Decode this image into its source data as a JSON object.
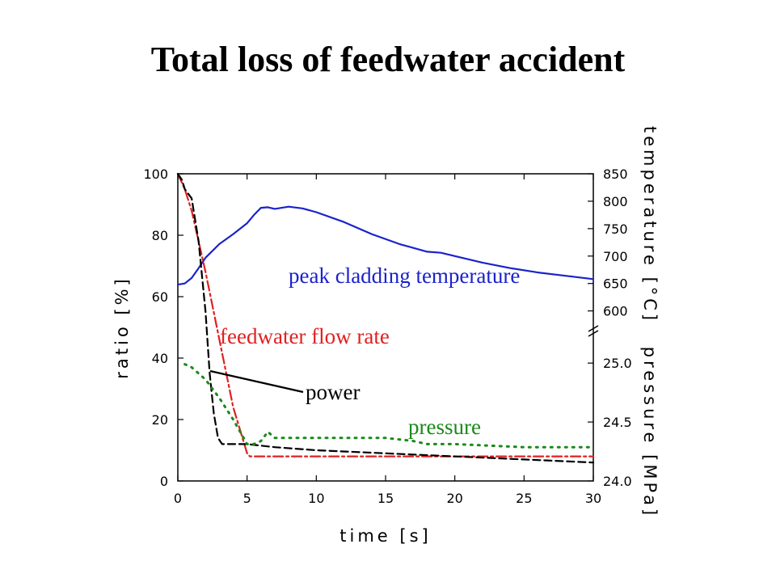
{
  "page": {
    "title": "Total loss of feedwater accident"
  },
  "chart_data": {
    "type": "line",
    "title": "Total loss of feedwater accident",
    "xlabel": "time [s]",
    "ylabel_left": "ratio [%]",
    "ylabel_right_upper": "temperature [°C]",
    "ylabel_right_lower": "pressure [MPa]",
    "xlim": [
      0,
      30
    ],
    "ylim_left": [
      0,
      100
    ],
    "ylim_right_upper": [
      570,
      850
    ],
    "ylim_right_lower": [
      24.0,
      25.2
    ],
    "x_ticks": [
      0,
      5,
      10,
      15,
      20,
      25,
      30
    ],
    "y_left_ticks": [
      0,
      20,
      40,
      60,
      80,
      100
    ],
    "y_right_upper_ticks": [
      600,
      650,
      700,
      750,
      800,
      850
    ],
    "y_right_lower_ticks": [
      24.0,
      24.5,
      25.0
    ],
    "grid": false,
    "annotations": {
      "temperature": "peak cladding temperature",
      "flow": "feedwater flow rate",
      "power": "power",
      "pressure": "pressure"
    },
    "series": [
      {
        "key": "temperature",
        "axis": "right_upper",
        "color": "#1a22cc",
        "dash": "",
        "x": [
          0,
          0.5,
          1,
          1.5,
          2,
          3,
          4,
          5,
          5.5,
          6,
          6.5,
          7,
          8,
          9,
          10,
          12,
          14,
          16,
          18,
          19,
          20,
          22,
          24,
          26,
          28,
          30
        ],
        "y": [
          648,
          650,
          660,
          678,
          697,
          722,
          740,
          760,
          775,
          788,
          789,
          786,
          790,
          787,
          780,
          762,
          740,
          722,
          708,
          706,
          700,
          688,
          678,
          670,
          664,
          658
        ]
      },
      {
        "key": "flow",
        "axis": "left",
        "color": "#e02020",
        "dash": "12,4,3,4",
        "x": [
          0,
          0.5,
          1,
          2,
          3,
          4,
          5,
          5.2,
          10,
          15,
          20,
          25,
          30
        ],
        "y": [
          100,
          95,
          88,
          68,
          46,
          24,
          9,
          8,
          8,
          8,
          8,
          8,
          8
        ]
      },
      {
        "key": "power",
        "axis": "left",
        "color": "#000000",
        "dash": "9,5",
        "x": [
          0,
          0.3,
          0.5,
          1,
          1.5,
          2,
          2.3,
          2.6,
          2.9,
          3.2,
          3.5,
          4,
          5,
          7,
          10,
          15,
          20,
          25,
          30
        ],
        "y": [
          100,
          98,
          95,
          92,
          78,
          55,
          35,
          22,
          14,
          12,
          12,
          12,
          12,
          11,
          10,
          9,
          8,
          7,
          6
        ]
      },
      {
        "key": "pressure",
        "axis": "left",
        "color": "#1a8a1a",
        "dash": "2,7",
        "x": [
          0.5,
          1,
          2,
          3,
          4,
          5,
          5.5,
          6,
          6.5,
          7,
          8,
          10,
          12,
          15,
          17,
          18,
          20,
          25,
          30
        ],
        "y": [
          38,
          37,
          33,
          27,
          20,
          12,
          12,
          13,
          16,
          14,
          14,
          14,
          14,
          14,
          13,
          12,
          12,
          11,
          11
        ]
      }
    ]
  }
}
